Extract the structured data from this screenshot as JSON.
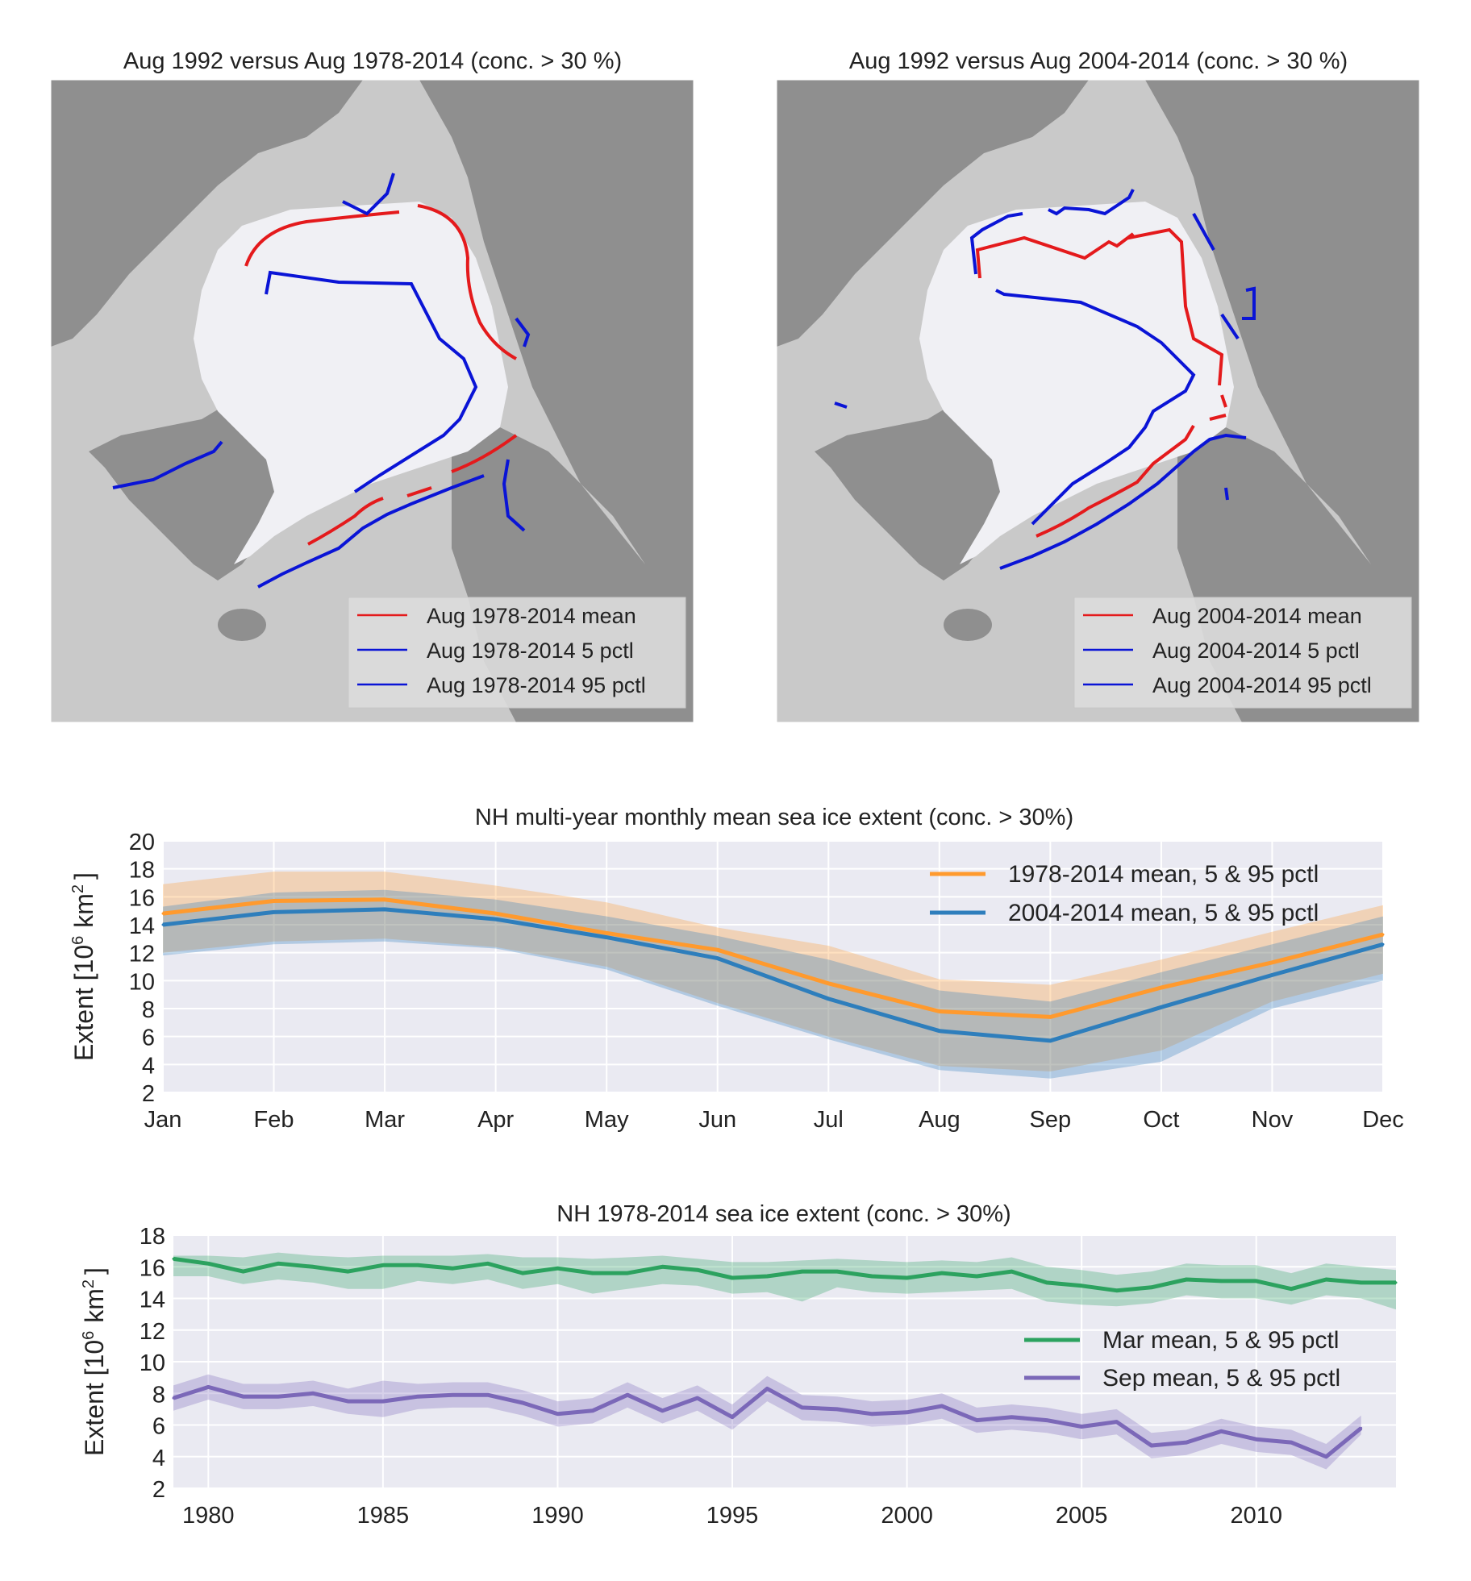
{
  "maps": [
    {
      "title": "Aug 1992 versus Aug 1978-2014 (conc. > 30 %)",
      "legend": [
        {
          "label": "Aug 1978-2014 mean",
          "color": "#e41a1c"
        },
        {
          "label": "Aug 1978-2014 5 pctl",
          "color": "#0a14d6"
        },
        {
          "label": "Aug 1978-2014 95 pctl",
          "color": "#0a14d6"
        }
      ]
    },
    {
      "title": "Aug 1992 versus Aug 2004-2014 (conc. > 30 %)",
      "legend": [
        {
          "label": "Aug 2004-2014 mean",
          "color": "#e41a1c"
        },
        {
          "label": "Aug 2004-2014 5 pctl",
          "color": "#0a14d6"
        },
        {
          "label": "Aug 2004-2014 95 pctl",
          "color": "#0a14d6"
        }
      ]
    }
  ],
  "chart_data": [
    {
      "type": "line",
      "title": "NH multi-year monthly mean sea ice extent (conc. > 30%)",
      "ylabel_main": "Extent [10",
      "ylabel_sup": "6",
      "ylabel_unit": "km",
      "ylabel_unit_sup": "2",
      "ylabel_close": "]",
      "categories": [
        "Jan",
        "Feb",
        "Mar",
        "Apr",
        "May",
        "Jun",
        "Jul",
        "Aug",
        "Sep",
        "Oct",
        "Nov",
        "Dec"
      ],
      "ylim": [
        2,
        20
      ],
      "yticks": [
        2,
        4,
        6,
        8,
        10,
        12,
        14,
        16,
        18,
        20
      ],
      "grid": true,
      "legend_position": "top-right",
      "series": [
        {
          "name": "1978-2014 mean, 5 & 95 pctl",
          "color": "#ff9a2e",
          "values": [
            14.8,
            15.7,
            15.8,
            14.8,
            13.4,
            12.2,
            9.8,
            7.8,
            7.4,
            9.5,
            11.3,
            13.3
          ],
          "p5": [
            12.0,
            12.8,
            13.0,
            12.4,
            11.0,
            8.4,
            6.0,
            3.9,
            3.5,
            5.0,
            8.5,
            10.5
          ],
          "p95": [
            16.9,
            17.8,
            17.8,
            16.8,
            15.6,
            13.8,
            12.5,
            10.1,
            9.7,
            11.5,
            13.5,
            15.4
          ]
        },
        {
          "name": "2004-2014 mean, 5 & 95 pctl",
          "color": "#2e7ebc",
          "values": [
            14.0,
            14.9,
            15.1,
            14.4,
            13.1,
            11.6,
            8.7,
            6.4,
            5.7,
            8.1,
            10.4,
            12.6
          ],
          "p5": [
            11.8,
            12.6,
            12.8,
            12.3,
            10.8,
            8.2,
            5.8,
            3.6,
            3.0,
            4.2,
            8.0,
            10.0
          ],
          "p95": [
            15.3,
            16.3,
            16.5,
            15.8,
            14.6,
            13.2,
            11.5,
            9.3,
            8.5,
            10.6,
            12.6,
            14.6
          ]
        }
      ]
    },
    {
      "type": "line",
      "title": "NH 1978-2014 sea ice extent (conc. > 30%)",
      "ylabel_main": "Extent [10",
      "ylabel_sup": "6",
      "ylabel_unit": "km",
      "ylabel_unit_sup": "2",
      "ylabel_close": "]",
      "xlim": [
        1979,
        2014
      ],
      "xticks": [
        1980,
        1985,
        1990,
        1995,
        2000,
        2005,
        2010
      ],
      "ylim": [
        2,
        18
      ],
      "yticks": [
        2,
        4,
        6,
        8,
        10,
        12,
        14,
        16,
        18
      ],
      "grid": true,
      "legend_position": "center-right",
      "series": [
        {
          "name": "Mar mean, 5 & 95 pctl",
          "color": "#2ca25f",
          "x": [
            1979,
            1980,
            1981,
            1982,
            1983,
            1984,
            1985,
            1986,
            1987,
            1988,
            1989,
            1990,
            1991,
            1992,
            1993,
            1994,
            1995,
            1996,
            1997,
            1998,
            1999,
            2000,
            2001,
            2002,
            2003,
            2004,
            2005,
            2006,
            2007,
            2008,
            2009,
            2010,
            2011,
            2012,
            2013,
            2014
          ],
          "values": [
            16.5,
            16.2,
            15.7,
            16.2,
            16.0,
            15.7,
            16.1,
            16.1,
            15.9,
            16.2,
            15.6,
            15.9,
            15.6,
            15.6,
            16.0,
            15.8,
            15.3,
            15.4,
            15.7,
            15.7,
            15.4,
            15.3,
            15.6,
            15.4,
            15.7,
            15.0,
            14.8,
            14.5,
            14.7,
            15.2,
            15.1,
            15.1,
            14.6,
            15.2,
            15.0,
            15.0
          ],
          "p5": [
            15.4,
            15.4,
            14.9,
            15.2,
            15.0,
            14.6,
            14.6,
            15.1,
            14.9,
            15.2,
            14.6,
            14.9,
            14.3,
            14.6,
            14.9,
            14.8,
            14.3,
            14.4,
            13.8,
            14.7,
            14.4,
            14.3,
            14.4,
            14.5,
            14.6,
            13.8,
            13.6,
            13.5,
            13.7,
            14.2,
            14.0,
            14.0,
            13.6,
            14.2,
            14.0,
            13.3
          ],
          "p95": [
            16.7,
            16.7,
            16.6,
            16.9,
            16.7,
            16.6,
            16.7,
            16.7,
            16.7,
            16.8,
            16.6,
            16.6,
            16.5,
            16.6,
            16.7,
            16.5,
            16.3,
            16.3,
            16.4,
            16.5,
            16.4,
            16.3,
            16.4,
            16.3,
            16.6,
            16.0,
            15.8,
            15.5,
            15.7,
            16.2,
            16.1,
            16.1,
            15.6,
            16.2,
            16.0,
            15.8
          ]
        },
        {
          "name": "Sep mean, 5 & 95 pctl",
          "color": "#7b68b8",
          "x": [
            1979,
            1980,
            1981,
            1982,
            1983,
            1984,
            1985,
            1986,
            1987,
            1988,
            1989,
            1990,
            1991,
            1992,
            1993,
            1994,
            1995,
            1996,
            1997,
            1998,
            1999,
            2000,
            2001,
            2002,
            2003,
            2004,
            2005,
            2006,
            2007,
            2008,
            2009,
            2010,
            2011,
            2012,
            2013
          ],
          "values": [
            7.7,
            8.4,
            7.8,
            7.8,
            8.0,
            7.5,
            7.5,
            7.8,
            7.9,
            7.9,
            7.4,
            6.7,
            6.9,
            7.9,
            6.9,
            7.7,
            6.5,
            8.3,
            7.1,
            7.0,
            6.7,
            6.8,
            7.2,
            6.3,
            6.5,
            6.3,
            5.9,
            6.2,
            4.7,
            4.9,
            5.6,
            5.1,
            4.9,
            4.0,
            5.8
          ],
          "p5": [
            6.9,
            7.6,
            7.0,
            7.0,
            7.2,
            6.7,
            6.5,
            7.0,
            7.1,
            7.1,
            6.6,
            5.9,
            6.1,
            7.1,
            6.1,
            6.9,
            5.7,
            7.5,
            6.3,
            6.2,
            5.9,
            6.0,
            6.4,
            5.5,
            5.7,
            5.5,
            5.1,
            5.4,
            3.9,
            4.1,
            4.8,
            4.3,
            4.1,
            3.2,
            5.4
          ],
          "p95": [
            8.5,
            9.2,
            8.6,
            8.6,
            8.8,
            8.3,
            8.8,
            8.6,
            8.7,
            8.7,
            8.2,
            7.5,
            7.7,
            8.7,
            7.7,
            8.5,
            7.3,
            9.1,
            7.9,
            7.8,
            7.5,
            7.6,
            8.0,
            7.1,
            7.3,
            7.1,
            6.7,
            7.0,
            5.5,
            5.7,
            6.4,
            5.9,
            5.7,
            4.8,
            6.6
          ]
        }
      ]
    }
  ]
}
